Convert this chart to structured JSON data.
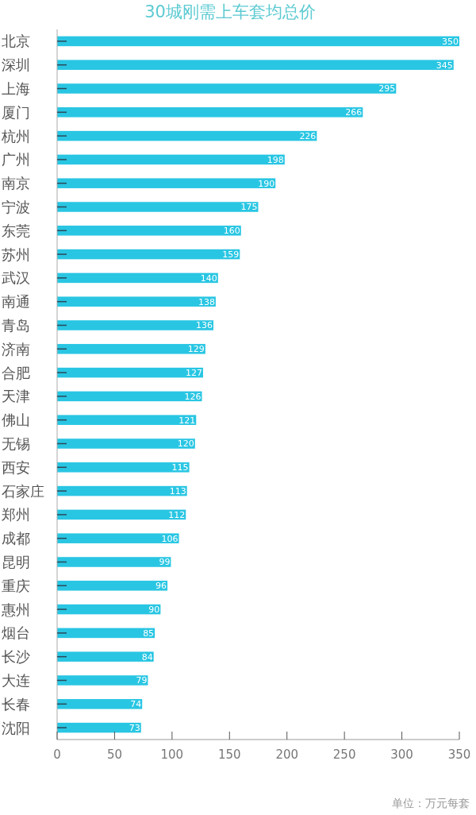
{
  "chart_data": {
    "type": "bar",
    "orientation": "horizontal",
    "title": "30城刚需上车套均总价",
    "categories": [
      "北京",
      "深圳",
      "上海",
      "厦门",
      "杭州",
      "广州",
      "南京",
      "宁波",
      "东莞",
      "苏州",
      "武汉",
      "南通",
      "青岛",
      "济南",
      "合肥",
      "天津",
      "佛山",
      "无锡",
      "西安",
      "石家庄",
      "郑州",
      "成都",
      "昆明",
      "重庆",
      "惠州",
      "烟台",
      "长沙",
      "大连",
      "长春",
      "沈阳"
    ],
    "values": [
      350,
      345,
      295,
      266,
      226,
      198,
      190,
      175,
      160,
      159,
      140,
      138,
      136,
      129,
      127,
      126,
      121,
      120,
      115,
      113,
      112,
      106,
      99,
      96,
      90,
      85,
      84,
      79,
      74,
      73
    ],
    "color": "#29c6e3",
    "xlim": [
      0,
      350
    ],
    "xticks": [
      0,
      50,
      100,
      150,
      200,
      250,
      300,
      350
    ],
    "data_labels": true,
    "annotations": [
      "单位：万元每套"
    ]
  }
}
